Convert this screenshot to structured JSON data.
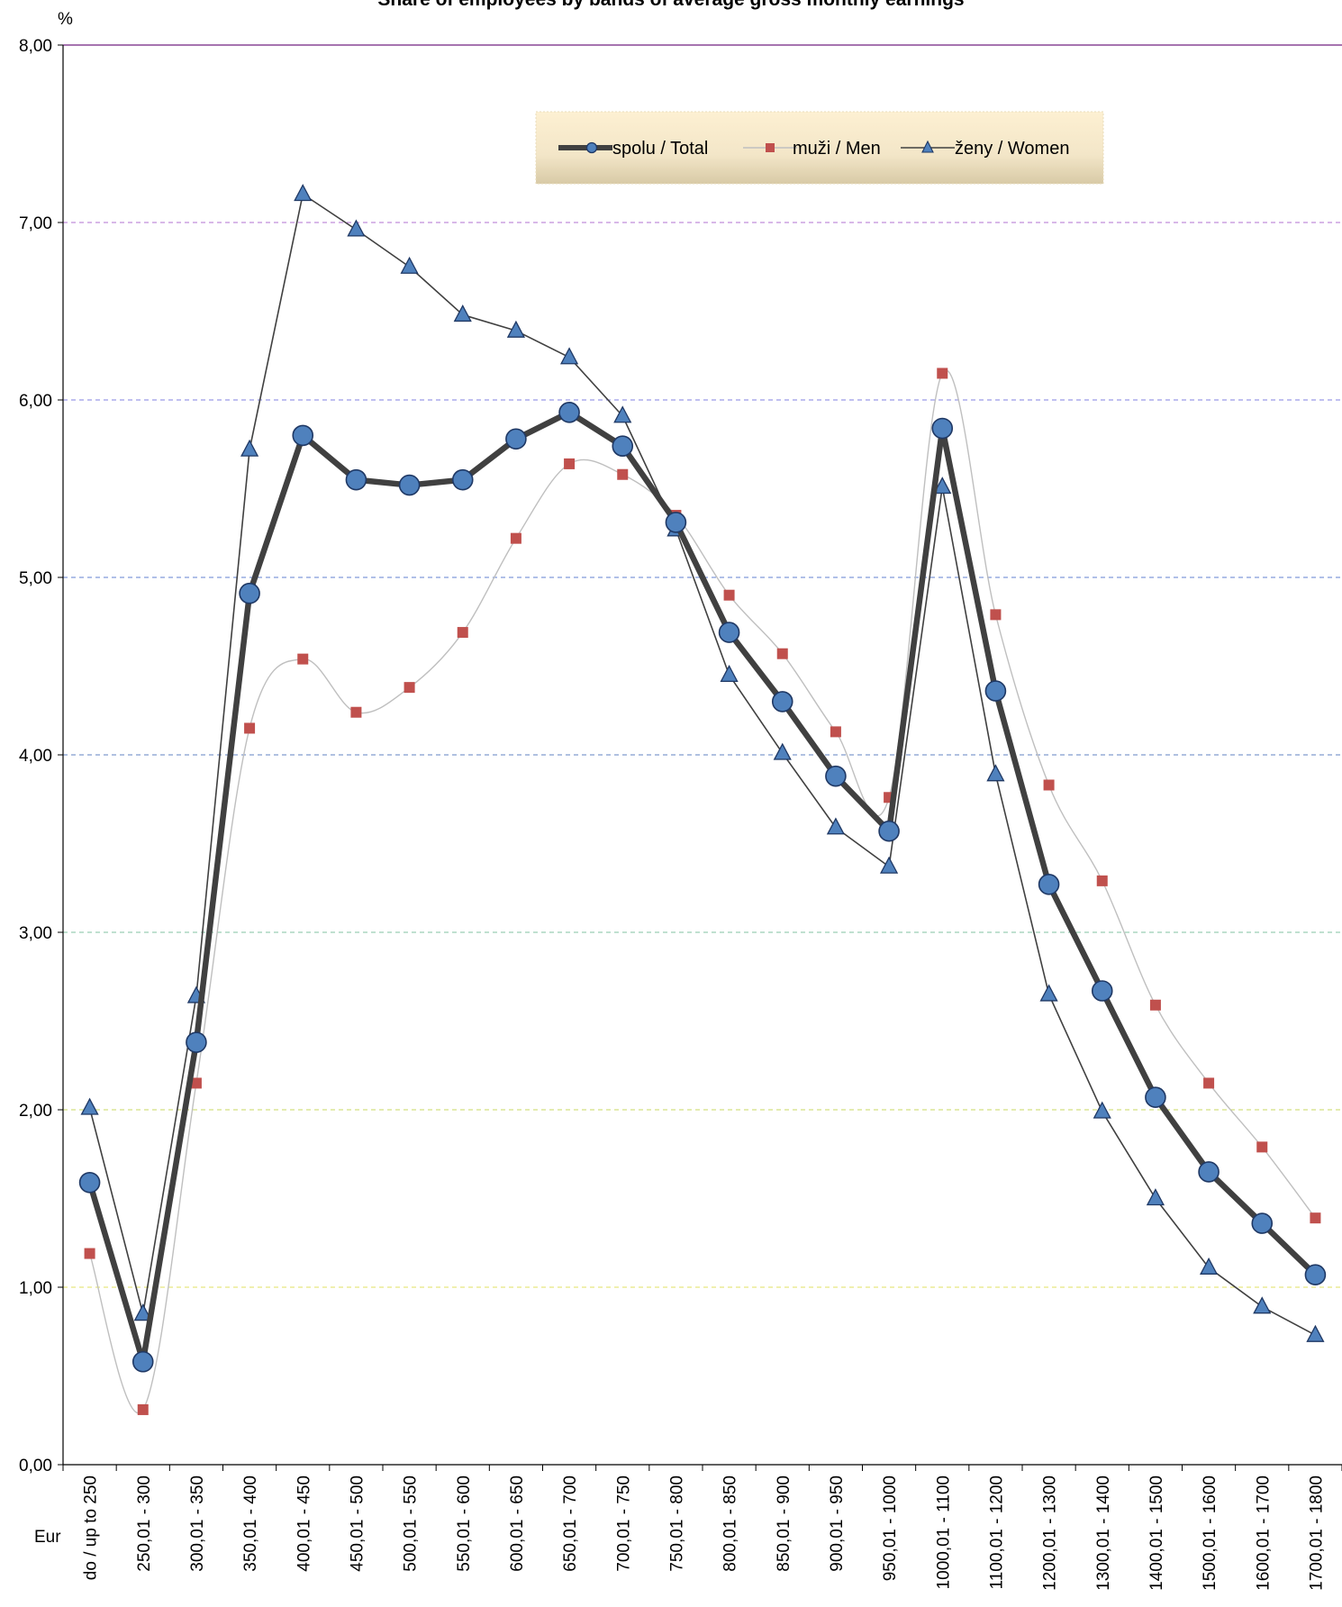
{
  "chart_data": {
    "type": "line",
    "title": "Share of employees by bands of average gross monthly earnings",
    "ylabel": "%",
    "xlabel": "Eur",
    "ylim": [
      0,
      8
    ],
    "yticks": [
      "0,00",
      "1,00",
      "2,00",
      "3,00",
      "4,00",
      "5,00",
      "6,00",
      "7,00",
      "8,00"
    ],
    "grid": true,
    "legend_position": "top-right",
    "categories": [
      "do / up to 250",
      "250,01 - 300",
      "300,01 - 350",
      "350,01 - 400",
      "400,01 - 450",
      "450,01 - 500",
      "500,01 - 550",
      "550,01 - 600",
      "600,01 - 650",
      "650,01 - 700",
      "700,01 - 750",
      "750,01 - 800",
      "800,01 - 850",
      "850,01 - 900",
      "900,01 - 950",
      "950,01 - 1000",
      "1000,01 - 1100",
      "1100,01 - 1200",
      "1200,01 - 1300",
      "1300,01 - 1400",
      "1400,01 - 1500",
      "1500,01 - 1600",
      "1600,01 - 1700",
      "1700,01 - 1800"
    ],
    "series": [
      {
        "name": "spolu / Total",
        "color": "#404040",
        "marker_color": "#4f81bd",
        "marker": "circle",
        "values": [
          1.59,
          0.58,
          2.38,
          4.91,
          5.8,
          5.55,
          5.52,
          5.55,
          5.78,
          5.93,
          5.74,
          5.31,
          4.69,
          4.3,
          3.88,
          3.57,
          5.84,
          4.36,
          3.27,
          2.67,
          2.07,
          1.65,
          1.36,
          1.07
        ]
      },
      {
        "name": "muži / Men",
        "color": "#bfbfbf",
        "marker_color": "#c0504d",
        "marker": "square",
        "values": [
          1.19,
          0.31,
          2.15,
          4.15,
          4.54,
          4.24,
          4.38,
          4.69,
          5.22,
          5.64,
          5.58,
          5.35,
          4.9,
          4.57,
          4.13,
          3.76,
          6.15,
          4.79,
          3.83,
          3.29,
          2.59,
          2.15,
          1.79,
          1.39
        ]
      },
      {
        "name": "ženy / Women",
        "color": "#404040",
        "marker_color": "#4f81bd",
        "marker": "triangle",
        "values": [
          2.01,
          0.85,
          2.64,
          5.72,
          7.16,
          6.96,
          6.75,
          6.48,
          6.39,
          6.24,
          5.91,
          5.27,
          4.45,
          4.01,
          3.59,
          3.37,
          5.51,
          3.89,
          2.65,
          1.99,
          1.5,
          1.11,
          0.89,
          0.73
        ]
      }
    ]
  }
}
